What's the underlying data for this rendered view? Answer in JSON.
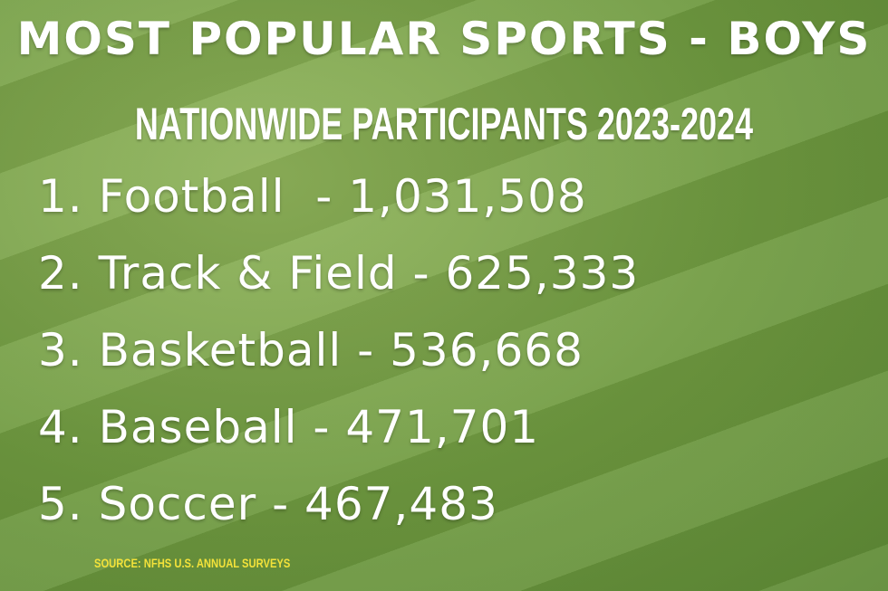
{
  "header": {
    "title": "MOST POPULAR SPORTS - BOYS",
    "subtitle": "NATIONWIDE PARTICIPANTS 2023-2024"
  },
  "items": [
    "1. Football  - 1,031,508",
    "2. Track & Field - 625,333",
    "3. Basketball - 536,668",
    "4. Baseball - 471,701",
    "5. Soccer - 467,483"
  ],
  "footer": {
    "source": "SOURCE: NFHS U.S. ANNUAL SURVEYS"
  }
}
